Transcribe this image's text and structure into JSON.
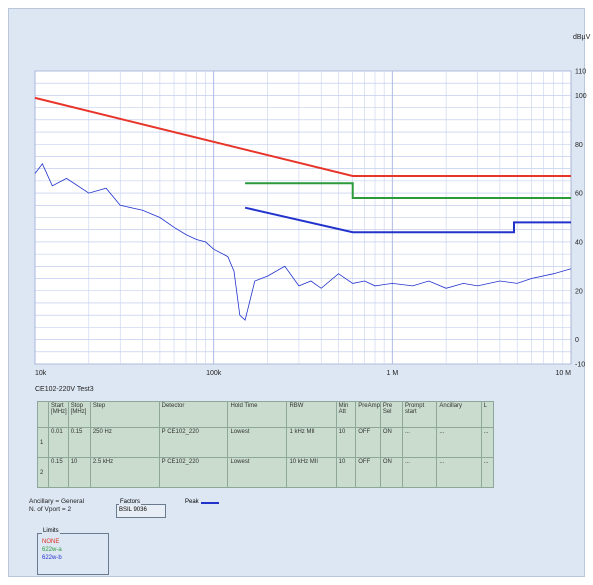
{
  "chart_data": {
    "type": "line",
    "x_scale": "log",
    "xlim": [
      10000,
      10000000
    ],
    "ylim": [
      -10,
      110
    ],
    "ylabel": "dBµV",
    "x_tick_labels": [
      {
        "value": 10000,
        "label": "10k"
      },
      {
        "value": 100000,
        "label": "100k"
      },
      {
        "value": 1000000,
        "label": "1 M"
      },
      {
        "value": 10000000,
        "label": "10 M"
      }
    ],
    "y_tick_labels": [
      {
        "value": 110,
        "label": "110"
      },
      {
        "value": 100,
        "label": "100"
      },
      {
        "value": 80,
        "label": "80"
      },
      {
        "value": 60,
        "label": "60"
      },
      {
        "value": 40,
        "label": "40"
      },
      {
        "value": 20,
        "label": "20"
      },
      {
        "value": 0,
        "label": "0"
      },
      {
        "value": -10,
        "label": "-10"
      }
    ],
    "grid": true,
    "series": [
      {
        "name": "NONE",
        "color": "#e8352a",
        "x": [
          10000,
          600000,
          10000000
        ],
        "y": [
          99,
          67,
          67
        ]
      },
      {
        "name": "622w-a",
        "color": "#2a9a3a",
        "x": [
          150000,
          600000,
          600000,
          10000000
        ],
        "y": [
          64,
          64,
          58,
          58
        ]
      },
      {
        "name": "622w-b",
        "color": "#2233cc",
        "x": [
          150000,
          600000,
          4800000,
          4800000,
          10000000
        ],
        "y": [
          54,
          44,
          44,
          48,
          48
        ]
      },
      {
        "name": "Peak",
        "color": "#2233cc",
        "x": [
          10000,
          11000,
          12500,
          15000,
          20000,
          25000,
          30000,
          40000,
          50000,
          60000,
          70000,
          80000,
          90000,
          100000,
          120000,
          130000,
          140000,
          150000,
          170000,
          200000,
          250000,
          300000,
          350000,
          400000,
          500000,
          600000,
          700000,
          800000,
          1000000,
          1300000,
          1600000,
          2000000,
          2500000,
          3000000,
          4000000,
          5000000,
          6000000,
          8000000,
          10000000
        ],
        "y": [
          68,
          72,
          63,
          66,
          60,
          62,
          55,
          53,
          50,
          46,
          43,
          41,
          40,
          37,
          34,
          28,
          10,
          8,
          24,
          26,
          30,
          22,
          24,
          21,
          27,
          23,
          24,
          22,
          23,
          22,
          24,
          21,
          23,
          22,
          24,
          23,
          25,
          27,
          29
        ]
      }
    ]
  },
  "test_title": "CE102-220V Test3",
  "table": {
    "headers": [
      "",
      "Start [MHz]",
      "Stop [MHz]",
      "Step",
      "Detector",
      "Hold Time",
      "RBW",
      "Min Att",
      "PreAmp",
      "Pre Sel",
      "Prompt start",
      "Ancillary",
      "L"
    ],
    "rows": [
      [
        "1",
        "0.01",
        "0.15",
        "250 Hz",
        "P CE102_220",
        "Lowest",
        "1 kHz MIl",
        "10",
        "OFF",
        "ON",
        "...",
        "...",
        "..."
      ],
      [
        "2",
        "0.15",
        "10",
        "2.5 kHz",
        "P CE102_220",
        "Lowest",
        "10 kHz MIl",
        "10",
        "OFF",
        "ON",
        "...",
        "...",
        "..."
      ]
    ]
  },
  "ancillary": "Ancillary = General",
  "n_of_vport": "N. of Vport = 2",
  "factors": {
    "label": "Factors",
    "value": "BSIL 9036"
  },
  "peak_label": "Peak",
  "limits": {
    "label": "Limits",
    "items": [
      {
        "name": "NONE",
        "color": "#d83020"
      },
      {
        "name": "622w-a",
        "color": "#2a9a3a"
      },
      {
        "name": "622w-b",
        "color": "#2233cc"
      }
    ]
  }
}
